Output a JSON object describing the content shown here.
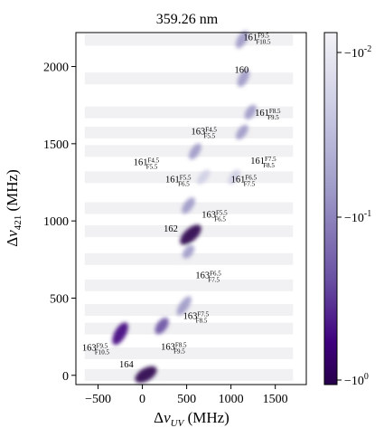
{
  "chart_data": {
    "type": "heatmap",
    "title": "359.26 nm",
    "xlabel": "Δν_UV (MHz)",
    "ylabel": "Δν_421 (MHz)",
    "xlim": [
      -750,
      1850
    ],
    "ylim": [
      -60,
      2220
    ],
    "xticks": [
      -500,
      0,
      500,
      1000,
      1500
    ],
    "yticks": [
      0,
      500,
      1000,
      1500,
      2000
    ],
    "grid": false,
    "colormap": "Purples (reversed)",
    "colorbar": {
      "scale": "symlog",
      "ticks": [
        "−10^{-2}",
        "−10^{-1}",
        "−10^{0}"
      ],
      "colors": [
        "#f3f3f7",
        "#cfcfe6",
        "#9e9ac8",
        "#6a51a3",
        "#3f007d",
        "#27004a"
      ]
    },
    "scan_rows_y": [
      0,
      140,
      300,
      420,
      580,
      750,
      930,
      1080,
      1280,
      1450,
      1570,
      1700,
      1920,
      2170
    ],
    "streaks": [
      {
        "x": [
          -60,
          140
        ],
        "y": [
          -30,
          40
        ],
        "intensity": 1.0
      },
      {
        "x": [
          -310,
          -190
        ],
        "y": [
          210,
          330
        ],
        "intensity": 0.75
      },
      {
        "x": [
          170,
          270
        ],
        "y": [
          280,
          360
        ],
        "intensity": 0.55
      },
      {
        "x": [
          410,
          530
        ],
        "y": [
          400,
          500
        ],
        "intensity": 0.35
      },
      {
        "x": [
          480,
          560
        ],
        "y": [
          770,
          830
        ],
        "intensity": 0.35
      },
      {
        "x": [
          450,
          640
        ],
        "y": [
          860,
          960
        ],
        "intensity": 1.0
      },
      {
        "x": [
          470,
          570
        ],
        "y": [
          1060,
          1140
        ],
        "intensity": 0.35
      },
      {
        "x": [
          640,
          740
        ],
        "y": [
          1250,
          1320
        ],
        "intensity": 0.25
      },
      {
        "x": [
          990,
          1080
        ],
        "y": [
          1250,
          1320
        ],
        "intensity": 0.25
      },
      {
        "x": [
          550,
          640
        ],
        "y": [
          1410,
          1490
        ],
        "intensity": 0.3
      },
      {
        "x": [
          1080,
          1170
        ],
        "y": [
          1540,
          1610
        ],
        "intensity": 0.3
      },
      {
        "x": [
          1180,
          1260
        ],
        "y": [
          1670,
          1740
        ],
        "intensity": 0.35
      },
      {
        "x": [
          1100,
          1180
        ],
        "y": [
          1880,
          1970
        ],
        "intensity": 0.4
      },
      {
        "x": [
          1080,
          1170
        ],
        "y": [
          2130,
          2220
        ],
        "intensity": 0.4
      }
    ],
    "annotations": [
      {
        "mass": "164",
        "F_upper": "",
        "F_lower": "",
        "x": -260,
        "y": 50
      },
      {
        "mass": "163",
        "F_upper": "F9.5",
        "F_lower": "F10.5",
        "x": -680,
        "y": 160
      },
      {
        "mass": "163",
        "F_upper": "F8.5",
        "F_lower": "F9.5",
        "x": 210,
        "y": 165
      },
      {
        "mass": "163",
        "F_upper": "F7.5",
        "F_lower": "F8.5",
        "x": 460,
        "y": 365
      },
      {
        "mass": "163",
        "F_upper": "F6.5",
        "F_lower": "F7.5",
        "x": 600,
        "y": 630
      },
      {
        "mass": "162",
        "F_upper": "",
        "F_lower": "",
        "x": 240,
        "y": 930
      },
      {
        "mass": "163",
        "F_upper": "F5.5",
        "F_lower": "F6.5",
        "x": 670,
        "y": 1020
      },
      {
        "mass": "161",
        "F_upper": "F5.5",
        "F_lower": "F6.5",
        "x": 260,
        "y": 1250
      },
      {
        "mass": "161",
        "F_upper": "F6.5",
        "F_lower": "F7.5",
        "x": 1000,
        "y": 1250
      },
      {
        "mass": "161",
        "F_upper": "F4.5",
        "F_lower": "F5.5",
        "x": -100,
        "y": 1360
      },
      {
        "mass": "161",
        "F_upper": "F7.5",
        "F_lower": "F8.5",
        "x": 1220,
        "y": 1370
      },
      {
        "mass": "163",
        "F_upper": "F4.5",
        "F_lower": "F5.5",
        "x": 550,
        "y": 1560
      },
      {
        "mass": "161",
        "F_upper": "F8.5",
        "F_lower": "F9.5",
        "x": 1270,
        "y": 1680
      },
      {
        "mass": "160",
        "F_upper": "",
        "F_lower": "",
        "x": 1040,
        "y": 1960
      },
      {
        "mass": "161",
        "F_upper": "F9.5",
        "F_lower": "F10.5",
        "x": 1140,
        "y": 2170
      }
    ]
  }
}
